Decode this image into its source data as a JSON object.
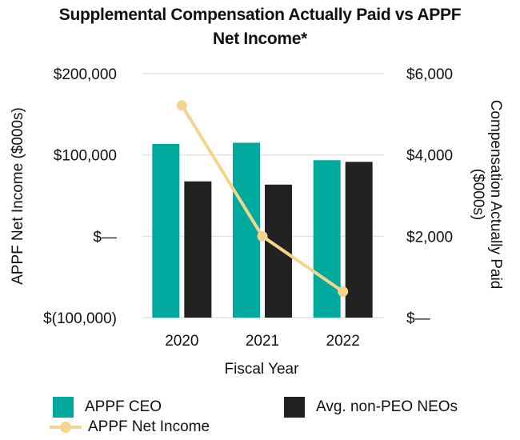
{
  "colors": {
    "ceo": "#00a99d",
    "neo": "#222222",
    "net_income": "#f4d58d",
    "grid": "#e3e3e3"
  },
  "chart_data": {
    "type": "bar",
    "title_lines": [
      "Supplemental Compensation Actually Paid vs APPF",
      "Net Income*"
    ],
    "xlabel": "Fiscal Year",
    "ylabel_left": "APPF Net Income ($000s)",
    "ylabel_right": "Compensation Actually Paid ($000s)",
    "categories": [
      "2020",
      "2021",
      "2022"
    ],
    "left_axis": {
      "ylim": [
        -100000,
        200000
      ],
      "ticks": [
        200000,
        100000,
        0,
        -100000
      ],
      "tick_labels": [
        "$200,000",
        "$100,000",
        "$—",
        "$(100,000)"
      ]
    },
    "right_axis": {
      "ylim": [
        0,
        6000
      ],
      "ticks": [
        6000,
        4000,
        2000,
        0
      ],
      "tick_labels": [
        "$6,000",
        "$4,000",
        "$2,000",
        "$—"
      ]
    },
    "grid": true,
    "legend_placement": "bottom",
    "series": [
      {
        "name": "APPF CEO",
        "type": "bar",
        "axis": "right",
        "values": [
          4270,
          4300,
          3870
        ]
      },
      {
        "name": "Avg. non-PEO NEOs",
        "type": "bar",
        "axis": "right",
        "values": [
          3350,
          3270,
          3830
        ]
      },
      {
        "name": "APPF Net Income",
        "type": "line",
        "axis": "left",
        "values": [
          161000,
          0,
          -68000
        ]
      }
    ]
  },
  "legend": {
    "ceo": "APPF CEO",
    "neo": "Avg. non-PEO NEOs",
    "net_income": "APPF Net Income"
  }
}
